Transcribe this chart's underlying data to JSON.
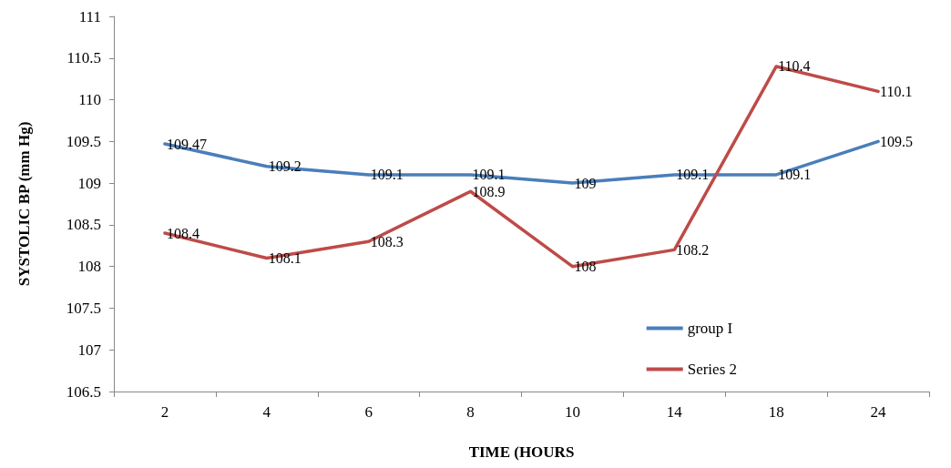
{
  "chart_data": {
    "type": "line",
    "xlabel": "TIME (HOURS",
    "ylabel": "SYSTOLIC BP (mm Hg)",
    "categories": [
      "2",
      "4",
      "6",
      "8",
      "10",
      "14",
      "18",
      "24"
    ],
    "series": [
      {
        "name": "group I",
        "color": "#4a7ebb",
        "values": [
          109.47,
          109.2,
          109.1,
          109.1,
          109,
          109.1,
          109.1,
          109.5
        ]
      },
      {
        "name": "Series 2",
        "color": "#be4b48",
        "values": [
          108.4,
          108.1,
          108.3,
          108.9,
          108,
          108.2,
          110.4,
          110.1
        ]
      }
    ],
    "ylim": [
      106.5,
      111
    ],
    "yticks": [
      106.5,
      107,
      107.5,
      108,
      108.5,
      109,
      109.5,
      110,
      110.5,
      111
    ],
    "data_labels": true,
    "grid": false,
    "legend": "bottom right",
    "marker": "none",
    "line_style": "solid"
  }
}
